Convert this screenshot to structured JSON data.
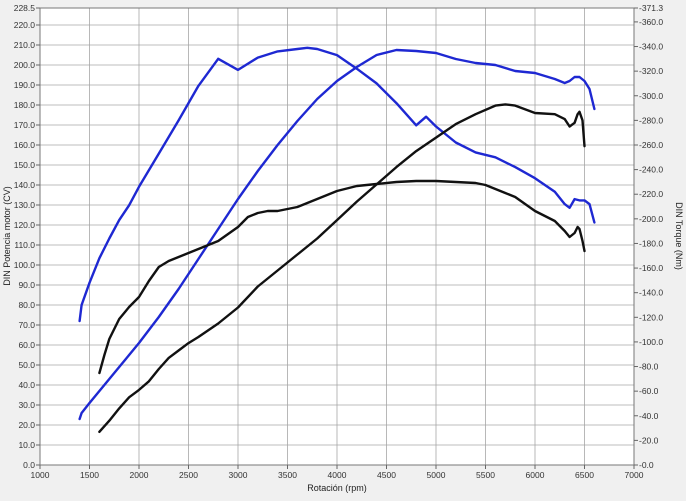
{
  "chart_data": {
    "type": "line",
    "title": "",
    "xlabel": "Rotación (rpm)",
    "ylabel_left": "DIN Potencia motor (CV)",
    "ylabel_right": "DIN Torque (Nm)",
    "xlim": [
      1000,
      7000
    ],
    "ylim_left": [
      0,
      228.5
    ],
    "ylim_right": [
      0,
      371.3
    ],
    "x_ticks": [
      "1000",
      "1500",
      "2000",
      "2500",
      "3000",
      "3500",
      "4000",
      "4500",
      "5000",
      "5500",
      "6000",
      "6500",
      "7000"
    ],
    "y_ticks_left": [
      "0.0",
      "10.0",
      "20.0",
      "30.0",
      "40.0",
      "50.0",
      "60.0",
      "70.0",
      "80.0",
      "90.0",
      "100.0",
      "110.0",
      "120.0",
      "130.0",
      "140.0",
      "150.0",
      "160.0",
      "170.0",
      "180.0",
      "190.0",
      "200.0",
      "210.0",
      "220.0",
      "228.5"
    ],
    "y_ticks_right": [
      "0.0",
      "20.0",
      "40.0",
      "60.0",
      "80.0",
      "100.0",
      "120.0",
      "140.0",
      "160.0",
      "180.0",
      "200.0",
      "220.0",
      "240.0",
      "260.0",
      "280.0",
      "300.0",
      "320.0",
      "340.0",
      "360.0",
      "371.3"
    ],
    "grid": true,
    "colors": {
      "blue": "#1e28d2",
      "black": "#111111",
      "grid": "#a6a6a6",
      "background": "#ffffff"
    },
    "series": [
      {
        "color": "#1e28d2",
        "axis": "left",
        "x": [
          1400,
          1420,
          1500,
          1600,
          1700,
          1800,
          1900,
          2000,
          2200,
          2400,
          2600,
          2800,
          3000,
          3200,
          3400,
          3600,
          3800,
          4000,
          4200,
          4400,
          4600,
          4800,
          5000,
          5200,
          5400,
          5600,
          5800,
          6000,
          6200,
          6300,
          6350,
          6400,
          6450,
          6500,
          6550,
          6600
        ],
        "y": [
          23,
          26,
          31,
          37,
          43,
          49,
          55,
          61,
          74,
          88,
          103,
          118,
          133,
          147,
          160,
          172,
          183,
          192,
          199,
          205,
          207.5,
          207,
          206,
          203,
          201,
          200,
          197,
          196,
          193,
          191,
          192,
          194,
          194,
          192,
          188,
          178
        ]
      },
      {
        "color": "#111111",
        "axis": "left",
        "x": [
          1600,
          1650,
          1700,
          1800,
          1900,
          2000,
          2100,
          2200,
          2300,
          2400,
          2500,
          2600,
          2800,
          3000,
          3100,
          3200,
          3300,
          3400,
          3600,
          3800,
          4000,
          4200,
          4400,
          4600,
          4800,
          5000,
          5200,
          5400,
          5500,
          5600,
          5700,
          5800,
          6000,
          6200,
          6300,
          6350,
          6400,
          6430,
          6450,
          6480,
          6500
        ],
        "y": [
          46,
          55,
          63,
          73,
          79,
          84,
          92,
          99,
          102,
          104,
          106,
          108,
          112,
          119,
          124,
          126,
          127,
          127,
          129,
          133,
          137,
          139.5,
          140.5,
          141.5,
          142,
          142,
          141.5,
          141,
          140,
          138,
          136,
          134,
          127,
          122,
          117,
          114,
          116,
          119,
          118,
          112,
          107
        ]
      },
      {
        "color": "#1e28d2",
        "axis": "right",
        "x": [
          1400,
          1420,
          1500,
          1600,
          1700,
          1800,
          1900,
          2000,
          2200,
          2400,
          2600,
          2800,
          3000,
          3200,
          3400,
          3600,
          3700,
          3800,
          4000,
          4200,
          4400,
          4600,
          4800,
          4900,
          5000,
          5200,
          5400,
          5600,
          5800,
          6000,
          6200,
          6300,
          6350,
          6400,
          6450,
          6500,
          6550,
          6600
        ],
        "y": [
          117,
          130,
          148,
          168,
          184,
          199,
          211,
          226,
          253,
          280,
          308,
          330,
          321,
          331,
          336,
          338,
          339,
          338,
          333,
          322,
          310,
          294,
          276,
          283,
          275,
          262,
          254,
          250,
          242,
          233,
          222,
          212,
          209,
          216,
          215,
          215,
          212,
          197
        ]
      },
      {
        "color": "#111111",
        "axis": "right",
        "x": [
          1600,
          1700,
          1800,
          1900,
          2000,
          2100,
          2200,
          2300,
          2400,
          2500,
          2600,
          2800,
          3000,
          3200,
          3400,
          3600,
          3800,
          4000,
          4200,
          4400,
          4600,
          4800,
          5000,
          5200,
          5400,
          5600,
          5700,
          5800,
          6000,
          6200,
          6300,
          6350,
          6400,
          6430,
          6450,
          6480,
          6500
        ],
        "y": [
          27,
          36,
          46,
          55,
          61,
          68,
          78,
          87,
          93,
          99,
          104,
          115,
          128,
          145,
          158,
          171,
          184,
          199,
          214,
          228,
          242,
          255,
          266,
          277,
          285,
          292,
          293,
          292,
          286,
          285,
          281,
          275,
          278,
          285,
          287,
          280,
          259
        ]
      }
    ]
  }
}
